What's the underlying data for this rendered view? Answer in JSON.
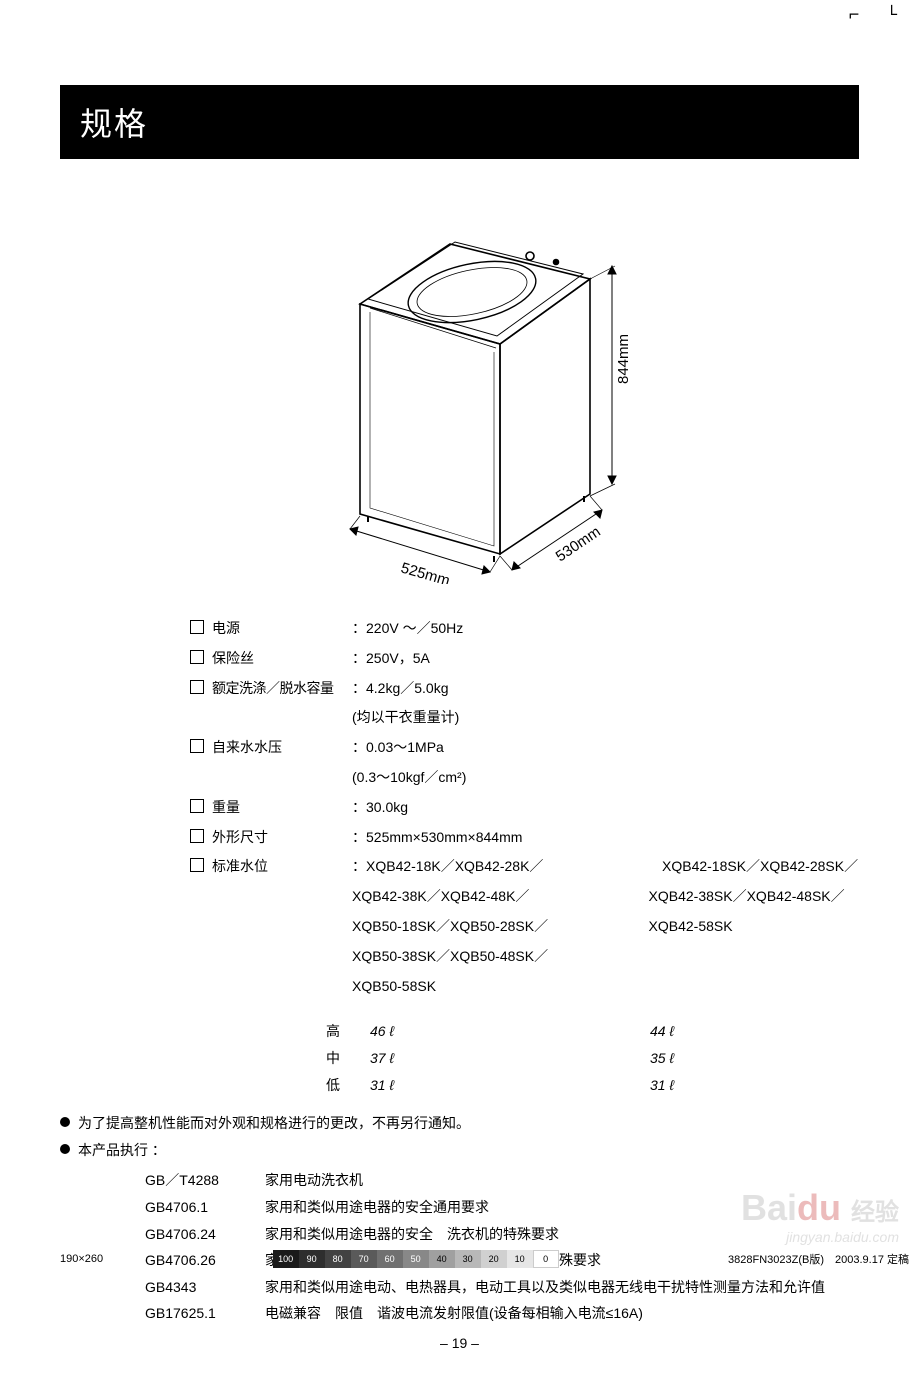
{
  "crop_marks": "⌐  └",
  "title": "规格",
  "diagram": {
    "width_label": "525mm",
    "depth_label": "530mm",
    "height_label": "844mm"
  },
  "specs": [
    {
      "label": "电源",
      "value": "220V ～／50Hz"
    },
    {
      "label": "保险丝",
      "value": "250V，5A"
    },
    {
      "label": "额定洗涤／脱水容量",
      "value": "4.2kg／5.0kg"
    },
    {
      "sub": "(均以干衣重量计)"
    },
    {
      "label": "自来水水压",
      "value": "0.03～1MPa"
    },
    {
      "sub": "(0.3～10kgf／cm²)"
    },
    {
      "label": "重量",
      "value": "30.0kg"
    },
    {
      "label": "外形尺寸",
      "value": "525mm×530mm×844mm"
    },
    {
      "label": "标准水位",
      "value_col1": "XQB42-18K／XQB42-28K／",
      "value_col2": "XQB42-18SK／XQB42-28SK／"
    },
    {
      "cont_col1": "XQB42-38K／XQB42-48K／",
      "cont_col2": "XQB42-38SK／XQB42-48SK／"
    },
    {
      "cont_col1": "XQB50-18SK／XQB50-28SK／",
      "cont_col2": "XQB42-58SK"
    },
    {
      "cont_col1": "XQB50-38SK／XQB50-48SK／",
      "cont_col2": ""
    },
    {
      "cont_col1": "XQB50-58SK",
      "cont_col2": ""
    }
  ],
  "levels": [
    {
      "label": "高",
      "v1": "46 ℓ",
      "v2": "44 ℓ"
    },
    {
      "label": "中",
      "v1": "37 ℓ",
      "v2": "35 ℓ"
    },
    {
      "label": "低",
      "v1": "31 ℓ",
      "v2": "31 ℓ"
    }
  ],
  "note1": "为了提高整机性能而对外观和规格进行的更改，不再另行通知。",
  "note2": "本产品执行 ：",
  "standards": [
    {
      "code": "GB／T4288",
      "desc": "家用电动洗衣机"
    },
    {
      "code": "GB4706.1",
      "desc": "家用和类似用途电器的安全通用要求"
    },
    {
      "code": "GB4706.24",
      "desc": "家用和类似用途电器的安全　洗衣机的特殊要求"
    },
    {
      "code": "GB4706.26",
      "desc": "家用和类似用途电器的安全　离心式脱水机的特殊要求"
    },
    {
      "code": "GB4343",
      "desc": "家用和类似用途电动、电热器具，电动工具以及类似电器无线电干扰特性测量方法和允许值"
    },
    {
      "code": "GB17625.1",
      "desc": "电磁兼容　限值　谐波电流发射限值(设备每相输入电流≤16A)"
    }
  ],
  "page_number": "– 19 –",
  "footer": {
    "left": "190×260",
    "right": "3828FN3023Z(B版)　2003.9.17 定稿",
    "greyscale": [
      {
        "v": "100",
        "c": "#1a1a1a"
      },
      {
        "v": "90",
        "c": "#2e2e2e"
      },
      {
        "v": "80",
        "c": "#424242"
      },
      {
        "v": "70",
        "c": "#5a5a5a"
      },
      {
        "v": "60",
        "c": "#707070"
      },
      {
        "v": "50",
        "c": "#888888"
      },
      {
        "v": "40",
        "c": "#a0a0a0"
      },
      {
        "v": "30",
        "c": "#b8b8b8"
      },
      {
        "v": "20",
        "c": "#d0d0d0"
      },
      {
        "v": "10",
        "c": "#e6e6e6"
      },
      {
        "v": "0",
        "c": "#ffffff"
      }
    ]
  },
  "watermark": {
    "brand_a": "Bai",
    "brand_b": "du",
    "brand_c": "经验",
    "url": "jingyan.baidu.com"
  }
}
